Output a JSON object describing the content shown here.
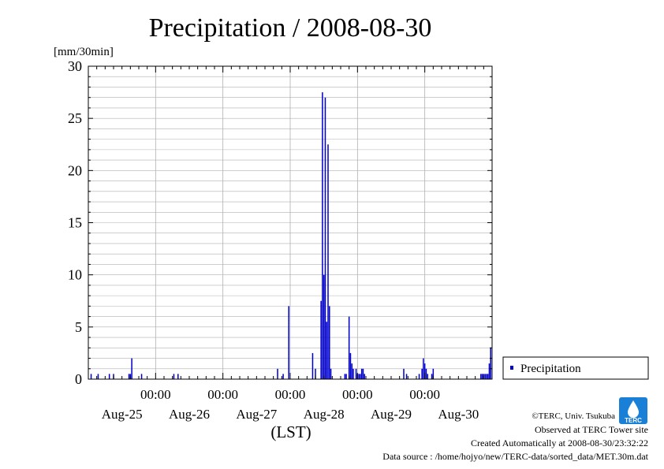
{
  "chart_data": {
    "type": "bar",
    "title": "Precipitation / 2008-08-30",
    "ylabel": "[mm/30min]",
    "xlabel": "(LST)",
    "ylim": [
      0,
      30
    ],
    "yticks": [
      0,
      5,
      10,
      15,
      20,
      25,
      30
    ],
    "x_range_hours": [
      -72,
      72
    ],
    "x_unit": "hours relative to 2008-08-28 00:00 LST",
    "x_major_ticks": [
      -48,
      -24,
      0,
      24,
      48
    ],
    "x_major_tick_label": "00:00",
    "day_labels": [
      {
        "label": "Aug-25",
        "hour": -60
      },
      {
        "label": "Aug-26",
        "hour": -36
      },
      {
        "label": "Aug-27",
        "hour": -12
      },
      {
        "label": "Aug-28",
        "hour": 12
      },
      {
        "label": "Aug-29",
        "hour": 36
      },
      {
        "label": "Aug-30",
        "hour": 60
      }
    ],
    "grid": true,
    "bar_color": "#0000cc",
    "series": [
      {
        "name": "Precipitation",
        "points": [
          {
            "x": -71.0,
            "y": 0.5
          },
          {
            "x": -68.5,
            "y": 0.5
          },
          {
            "x": -64.5,
            "y": 0.5
          },
          {
            "x": -63.0,
            "y": 0.5
          },
          {
            "x": -57.5,
            "y": 0.5
          },
          {
            "x": -57.0,
            "y": 0.5
          },
          {
            "x": -56.5,
            "y": 2.0
          },
          {
            "x": -53.0,
            "y": 0.5
          },
          {
            "x": -41.5,
            "y": 0.5
          },
          {
            "x": -40.0,
            "y": 0.5
          },
          {
            "x": -4.5,
            "y": 1.0
          },
          {
            "x": -2.5,
            "y": 0.5
          },
          {
            "x": -0.5,
            "y": 7.0
          },
          {
            "x": 8.0,
            "y": 2.5
          },
          {
            "x": 9.0,
            "y": 1.0
          },
          {
            "x": 11.0,
            "y": 7.5
          },
          {
            "x": 11.5,
            "y": 27.5
          },
          {
            "x": 12.0,
            "y": 10.0
          },
          {
            "x": 12.5,
            "y": 27.0
          },
          {
            "x": 13.0,
            "y": 5.5
          },
          {
            "x": 13.5,
            "y": 22.5
          },
          {
            "x": 14.0,
            "y": 7.0
          },
          {
            "x": 14.5,
            "y": 1.0
          },
          {
            "x": 19.5,
            "y": 0.5
          },
          {
            "x": 20.0,
            "y": 0.5
          },
          {
            "x": 21.0,
            "y": 6.0
          },
          {
            "x": 21.5,
            "y": 2.5
          },
          {
            "x": 22.0,
            "y": 1.5
          },
          {
            "x": 22.5,
            "y": 1.0
          },
          {
            "x": 23.5,
            "y": 1.0
          },
          {
            "x": 24.0,
            "y": 0.5
          },
          {
            "x": 24.5,
            "y": 0.5
          },
          {
            "x": 25.0,
            "y": 0.5
          },
          {
            "x": 25.5,
            "y": 1.0
          },
          {
            "x": 26.0,
            "y": 1.0
          },
          {
            "x": 26.5,
            "y": 0.5
          },
          {
            "x": 40.5,
            "y": 1.0
          },
          {
            "x": 41.5,
            "y": 0.5
          },
          {
            "x": 46.0,
            "y": 0.5
          },
          {
            "x": 47.0,
            "y": 1.0
          },
          {
            "x": 47.5,
            "y": 2.0
          },
          {
            "x": 48.0,
            "y": 1.5
          },
          {
            "x": 48.5,
            "y": 1.0
          },
          {
            "x": 49.0,
            "y": 0.5
          },
          {
            "x": 50.5,
            "y": 0.5
          },
          {
            "x": 51.0,
            "y": 1.0
          },
          {
            "x": 68.0,
            "y": 0.5
          },
          {
            "x": 68.5,
            "y": 0.5
          },
          {
            "x": 69.0,
            "y": 0.5
          },
          {
            "x": 69.5,
            "y": 0.5
          },
          {
            "x": 70.0,
            "y": 0.5
          },
          {
            "x": 70.5,
            "y": 0.5
          },
          {
            "x": 71.0,
            "y": 1.5
          },
          {
            "x": 71.5,
            "y": 3.0
          }
        ]
      }
    ],
    "legend": {
      "label": "Precipitation",
      "placement": "right"
    }
  },
  "footer": {
    "copyright": "©TERC, Univ. Tsukuba",
    "observed": "Observed at TERC Tower site",
    "created": "Created Automatically at 2008-08-30/23:32:22",
    "source": "Data source : /home/hojyo/new/TERC-data/sorted_data/MET.30m.dat"
  },
  "logo": {
    "text": "TERC",
    "color": "#1a7fd6"
  }
}
